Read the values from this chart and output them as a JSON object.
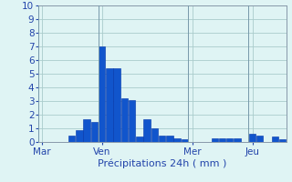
{
  "values": [
    0,
    0,
    0,
    0,
    0.5,
    0.9,
    1.7,
    1.5,
    7.0,
    5.4,
    5.4,
    3.2,
    3.1,
    0.4,
    1.7,
    1.0,
    0.5,
    0.5,
    0.3,
    0.2,
    0,
    0,
    0,
    0.25,
    0.25,
    0.25,
    0.25,
    0,
    0.6,
    0.5,
    0,
    0.4,
    0.2
  ],
  "day_labels": [
    "Mar",
    "Ven",
    "Mer",
    "Jeu"
  ],
  "day_positions": [
    0,
    8,
    20,
    28
  ],
  "xlabel": "Précipitations 24h ( mm )",
  "ylim": [
    0,
    10
  ],
  "yticks": [
    0,
    1,
    2,
    3,
    4,
    5,
    6,
    7,
    8,
    9,
    10
  ],
  "bar_color": "#1155cc",
  "bar_edge_color": "#0033aa",
  "bg_color": "#dff4f4",
  "grid_color": "#aacccc",
  "tick_color": "#2244aa",
  "xlabel_fontsize": 8,
  "tick_fontsize": 7.5
}
